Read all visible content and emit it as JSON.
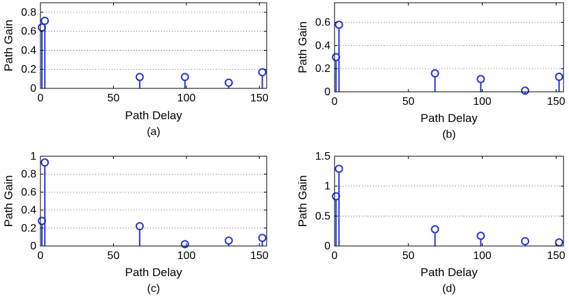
{
  "colors": {
    "stem": "#2233dd",
    "axis": "#000000",
    "grid": "#444444"
  },
  "chart_data": [
    {
      "type": "stem",
      "caption": "(a)",
      "xlabel": "Path Delay",
      "ylabel": "Path Gain",
      "xlim": [
        0,
        155
      ],
      "ylim": [
        0,
        0.9
      ],
      "xticks": [
        0,
        50,
        100,
        150
      ],
      "yticks": [
        0,
        0.2,
        0.4,
        0.6,
        0.8
      ],
      "ytick_labels": [
        "0",
        "0.2",
        "0.4",
        "0.6",
        "0.8"
      ],
      "grid": "y-dotted",
      "x": [
        1,
        3,
        68,
        99,
        129,
        152
      ],
      "values": [
        0.64,
        0.71,
        0.12,
        0.12,
        0.06,
        0.17
      ]
    },
    {
      "type": "stem",
      "caption": "(b)",
      "xlabel": "Path Delay",
      "ylabel": "Path Gain",
      "xlim": [
        0,
        155
      ],
      "ylim": [
        0,
        0.77
      ],
      "xticks": [
        0,
        50,
        100,
        150
      ],
      "yticks": [
        0,
        0.2,
        0.4,
        0.6
      ],
      "ytick_labels": [
        "0",
        "0.2",
        "0.4",
        "0.6"
      ],
      "grid": "y-dotted",
      "x": [
        1,
        3,
        68,
        99,
        129,
        152
      ],
      "values": [
        0.3,
        0.58,
        0.16,
        0.11,
        0.01,
        0.13
      ]
    },
    {
      "type": "stem",
      "caption": "(c)",
      "xlabel": "Path Delay",
      "ylabel": "Path Gain",
      "xlim": [
        0,
        155
      ],
      "ylim": [
        0,
        1.0
      ],
      "xticks": [
        0,
        50,
        100,
        150
      ],
      "yticks": [
        0,
        0.2,
        0.4,
        0.6,
        0.8,
        1
      ],
      "ytick_labels": [
        "0",
        "0.2",
        "0.4",
        "0.6",
        "0.8",
        "1"
      ],
      "grid": "y-dotted",
      "x": [
        1,
        3,
        68,
        99,
        129,
        152
      ],
      "values": [
        0.28,
        0.93,
        0.22,
        0.02,
        0.06,
        0.09
      ]
    },
    {
      "type": "stem",
      "caption": "(d)",
      "xlabel": "Path Delay",
      "ylabel": "Path Gain",
      "xlim": [
        0,
        155
      ],
      "ylim": [
        0,
        1.5
      ],
      "xticks": [
        0,
        50,
        100,
        150
      ],
      "yticks": [
        0,
        0.5,
        1,
        1.5
      ],
      "ytick_labels": [
        "0",
        "0.5",
        "1",
        "1.5"
      ],
      "grid": "y-dotted",
      "x": [
        1,
        3,
        68,
        99,
        129,
        152
      ],
      "values": [
        0.83,
        1.29,
        0.28,
        0.17,
        0.08,
        0.06
      ]
    }
  ]
}
